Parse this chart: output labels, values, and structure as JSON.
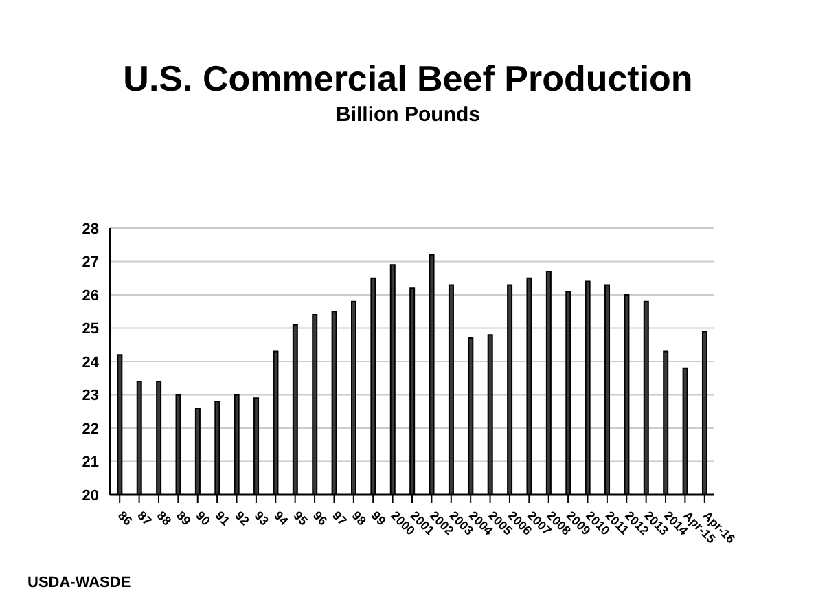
{
  "chart_data": {
    "type": "bar",
    "title": "U.S. Commercial Beef Production",
    "subtitle": "Billion Pounds",
    "categories": [
      "86",
      "87",
      "88",
      "89",
      "90",
      "91",
      "92",
      "93",
      "94",
      "95",
      "96",
      "97",
      "98",
      "99",
      "2000",
      "2001",
      "2002",
      "2003",
      "2004",
      "2005",
      "2006",
      "2007",
      "2008",
      "2009",
      "2010",
      "2011",
      "2012",
      "2013",
      "2014",
      "Apr-15",
      "Apr-16"
    ],
    "values": [
      24.2,
      23.4,
      23.4,
      23.0,
      22.6,
      22.8,
      23.0,
      22.9,
      24.3,
      25.1,
      25.4,
      25.5,
      25.8,
      26.5,
      26.9,
      26.2,
      27.2,
      26.3,
      24.7,
      24.8,
      26.3,
      26.5,
      26.7,
      26.1,
      26.4,
      26.3,
      26.0,
      25.8,
      24.3,
      23.8,
      24.9
    ],
    "color": "#3a3a3a",
    "ylim": [
      20,
      28
    ],
    "yticks": [
      20,
      21,
      22,
      23,
      24,
      25,
      26,
      27,
      28
    ],
    "grid": "y",
    "annotations": [
      "USDA-WASDE"
    ]
  }
}
